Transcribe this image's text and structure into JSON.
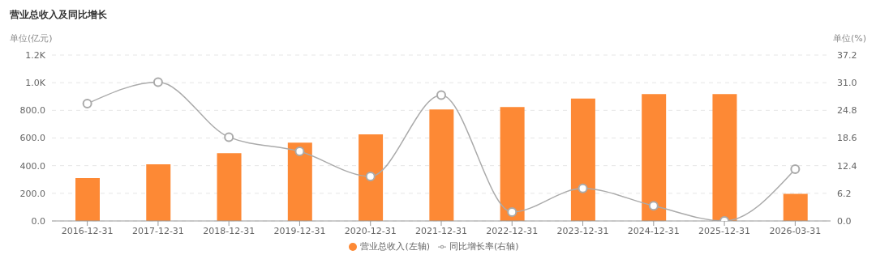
{
  "chart_data": {
    "type": "bar",
    "title": "营业总收入及同比增长",
    "ylabel": "单位(亿元)",
    "y2label": "单位(%)",
    "categories": [
      "2016-12-31",
      "2017-12-31",
      "2018-12-31",
      "2019-12-31",
      "2020-12-31",
      "2021-12-31",
      "2022-12-31",
      "2023-12-31",
      "2024-12-31",
      "2025-12-31",
      "2026-03-31"
    ],
    "series": [
      {
        "name": "营业总收入(左轴)",
        "color": "#fd8935",
        "values": [
          310,
          410,
          490,
          567,
          627,
          806,
          824,
          886,
          918,
          918,
          196
        ]
      },
      {
        "name": "同比增长率(右轴)",
        "type": "line",
        "axis": "y2",
        "color": "#aaaaaa",
        "marker": "circle",
        "values": [
          26.3,
          31.1,
          18.8,
          15.6,
          10.0,
          28.2,
          2.0,
          7.3,
          3.4,
          0,
          11.6
        ]
      }
    ],
    "ylim": [
      0,
      1200
    ],
    "yticks": [
      {
        "value": 0,
        "label": "0.0"
      },
      {
        "value": 200,
        "label": "200.0"
      },
      {
        "value": 400,
        "label": "400.0"
      },
      {
        "value": 600,
        "label": "600.0"
      },
      {
        "value": 800,
        "label": "800.0"
      },
      {
        "value": 1000,
        "label": "1.0K"
      },
      {
        "value": 1200,
        "label": "1.2K"
      }
    ],
    "y2lim": [
      0,
      37.2
    ],
    "y2ticks": [
      {
        "value": 0,
        "label": "0.0"
      },
      {
        "value": 6.2,
        "label": "6.2"
      },
      {
        "value": 12.4,
        "label": "12.4"
      },
      {
        "value": 18.6,
        "label": "18.6"
      },
      {
        "value": 24.8,
        "label": "24.8"
      },
      {
        "value": 31,
        "label": "31.0"
      },
      {
        "value": 37.2,
        "label": "37.2"
      }
    ],
    "grid": "y",
    "legend": "bottom"
  }
}
